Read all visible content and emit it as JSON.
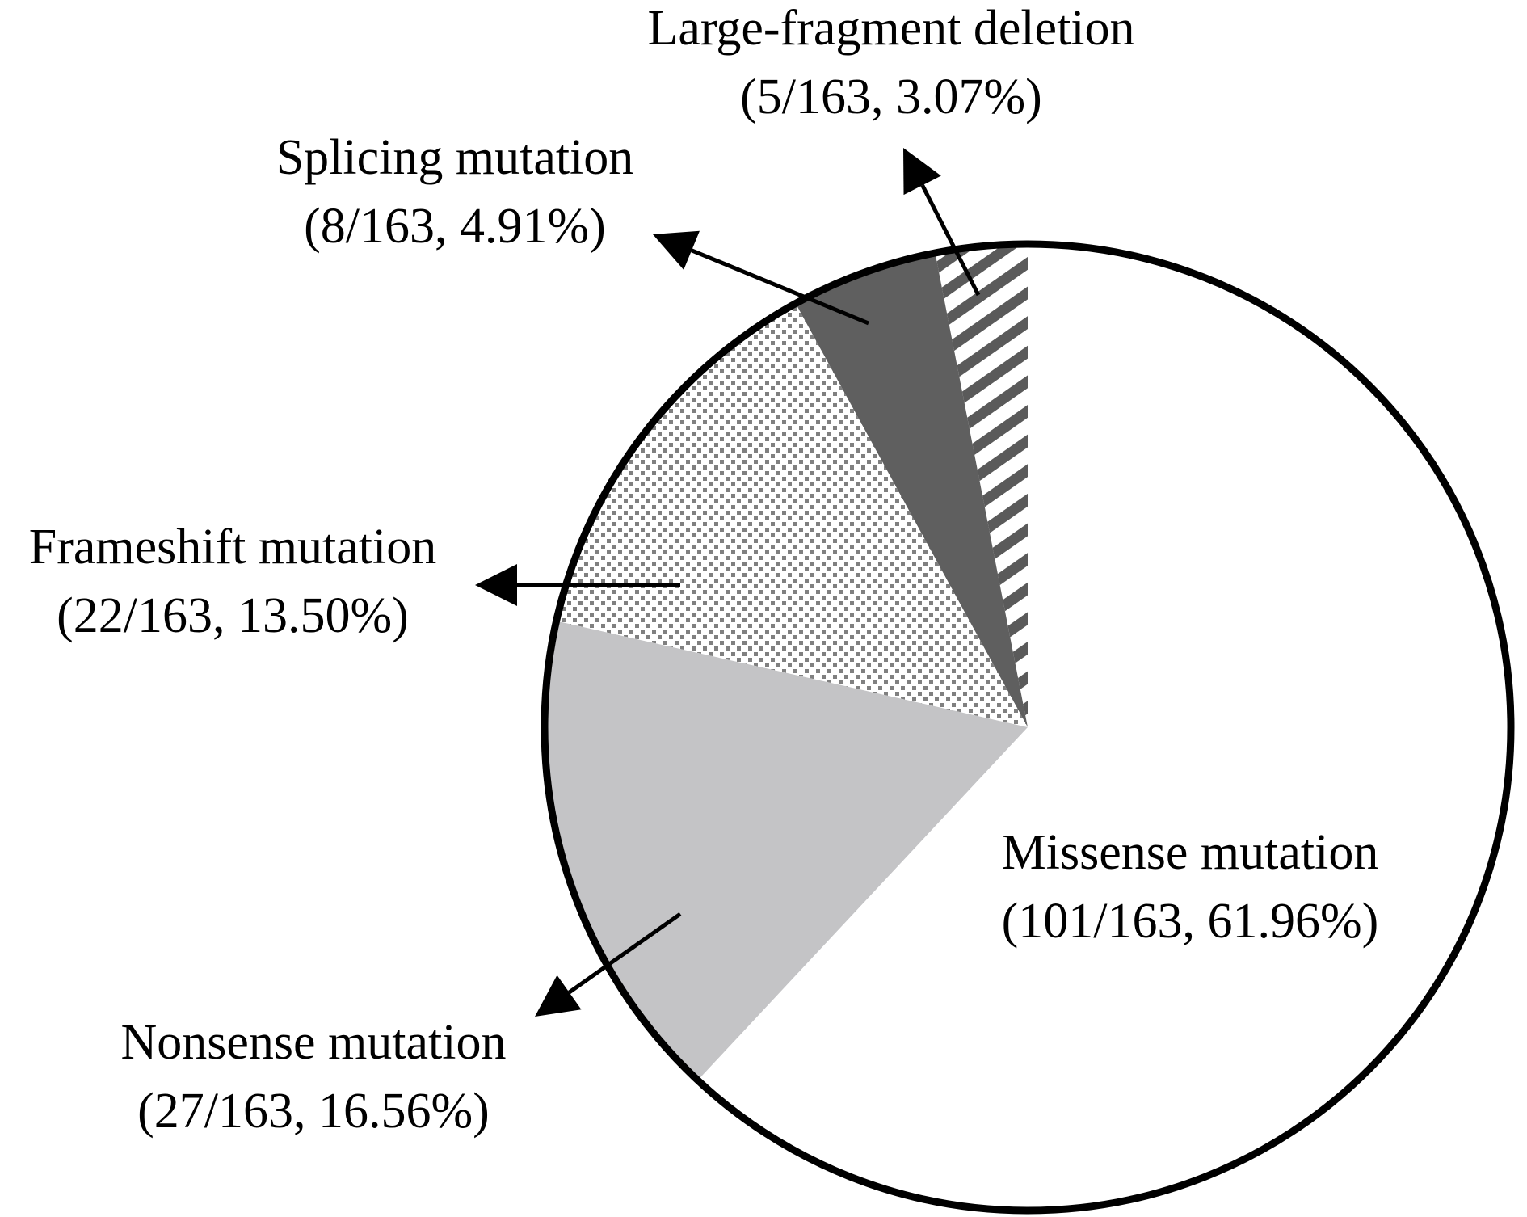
{
  "chart_data": {
    "type": "pie",
    "title": "",
    "total": 163,
    "slices": [
      {
        "name": "Large-fragment deletion",
        "count": 5,
        "percent": 3.07,
        "label_line1": "Large-fragment deletion",
        "label_line2": "(5/163, 3.07%)",
        "fill": "hatch",
        "color": "#5a5a5a"
      },
      {
        "name": "Splicing mutation",
        "count": 8,
        "percent": 4.91,
        "label_line1": "Splicing mutation",
        "label_line2": "(8/163, 4.91%)",
        "fill": "solid",
        "color": "#5f5f5f"
      },
      {
        "name": "Frameshift mutation",
        "count": 22,
        "percent": 13.5,
        "label_line1": "Frameshift mutation",
        "label_line2": "(22/163, 13.50%)",
        "fill": "dots",
        "color": "#808080"
      },
      {
        "name": "Nonsense mutation",
        "count": 27,
        "percent": 16.56,
        "label_line1": "Nonsense mutation",
        "label_line2": "(27/163, 16.56%)",
        "fill": "solid",
        "color": "#c4c4c6"
      },
      {
        "name": "Missense mutation",
        "count": 101,
        "percent": 61.96,
        "label_line1": "Missense mutation",
        "label_line2": "(101/163, 61.96%)",
        "fill": "solid",
        "color": "#ffffff"
      }
    ],
    "start_angle": "12 o'clock",
    "direction": "counter-clockwise",
    "outline_color": "#000000"
  }
}
